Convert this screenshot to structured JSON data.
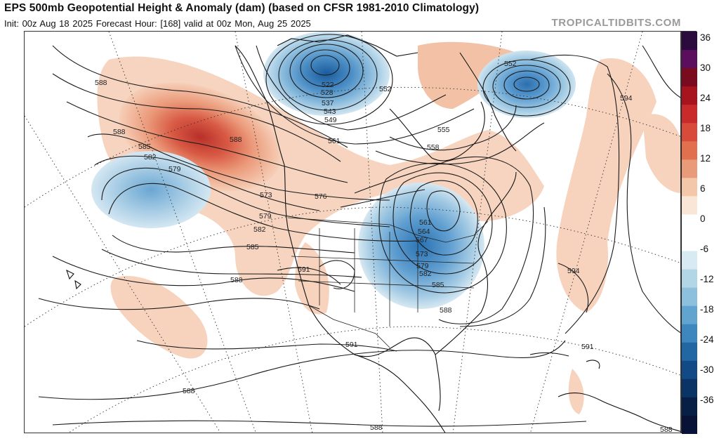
{
  "header": {
    "title": "EPS 500mb Geopotential Height & Anomaly (dam) (based on CFSR 1981-2010 Climatology)",
    "subtitle": "Init: 00z Aug 18 2025   Forecast Hour: [168]   valid at 00z Mon, Aug 25 2025",
    "source": "TROPICALTIDBITS.COM"
  },
  "colorbar": {
    "ticks": [
      "36",
      "30",
      "24",
      "18",
      "12",
      "6",
      "0",
      "-6",
      "-12",
      "-18",
      "-24",
      "-30",
      "-36"
    ],
    "colors": [
      "#2b0a3d",
      "#5b0e5e",
      "#7a0a1e",
      "#a8141e",
      "#c92a2a",
      "#d84a3a",
      "#e0704e",
      "#e99a78",
      "#f3c7aa",
      "#fae6d6",
      "#ffffff",
      "#ffffff",
      "#d8eaf2",
      "#b3d6e7",
      "#8cc0dd",
      "#62a4d0",
      "#3d86be",
      "#2167a4",
      "#124a85",
      "#0a3366",
      "#071f45",
      "#081236"
    ]
  },
  "contour_labels": {
    "items": [
      "588",
      "588",
      "585",
      "582",
      "579",
      "573",
      "576",
      "579",
      "582",
      "585",
      "588",
      "591",
      "591",
      "588",
      "588",
      "588",
      "522",
      "528",
      "537",
      "543",
      "549",
      "561",
      "552",
      "552",
      "555",
      "558",
      "561",
      "564",
      "567",
      "573",
      "579",
      "582",
      "585",
      "588",
      "594",
      "594",
      "591",
      "588"
    ]
  },
  "map": {
    "feature": "north-america-polar-stereographic",
    "anomaly_positive_color": "#e8735a",
    "anomaly_negative_color": "#3a86c8"
  }
}
